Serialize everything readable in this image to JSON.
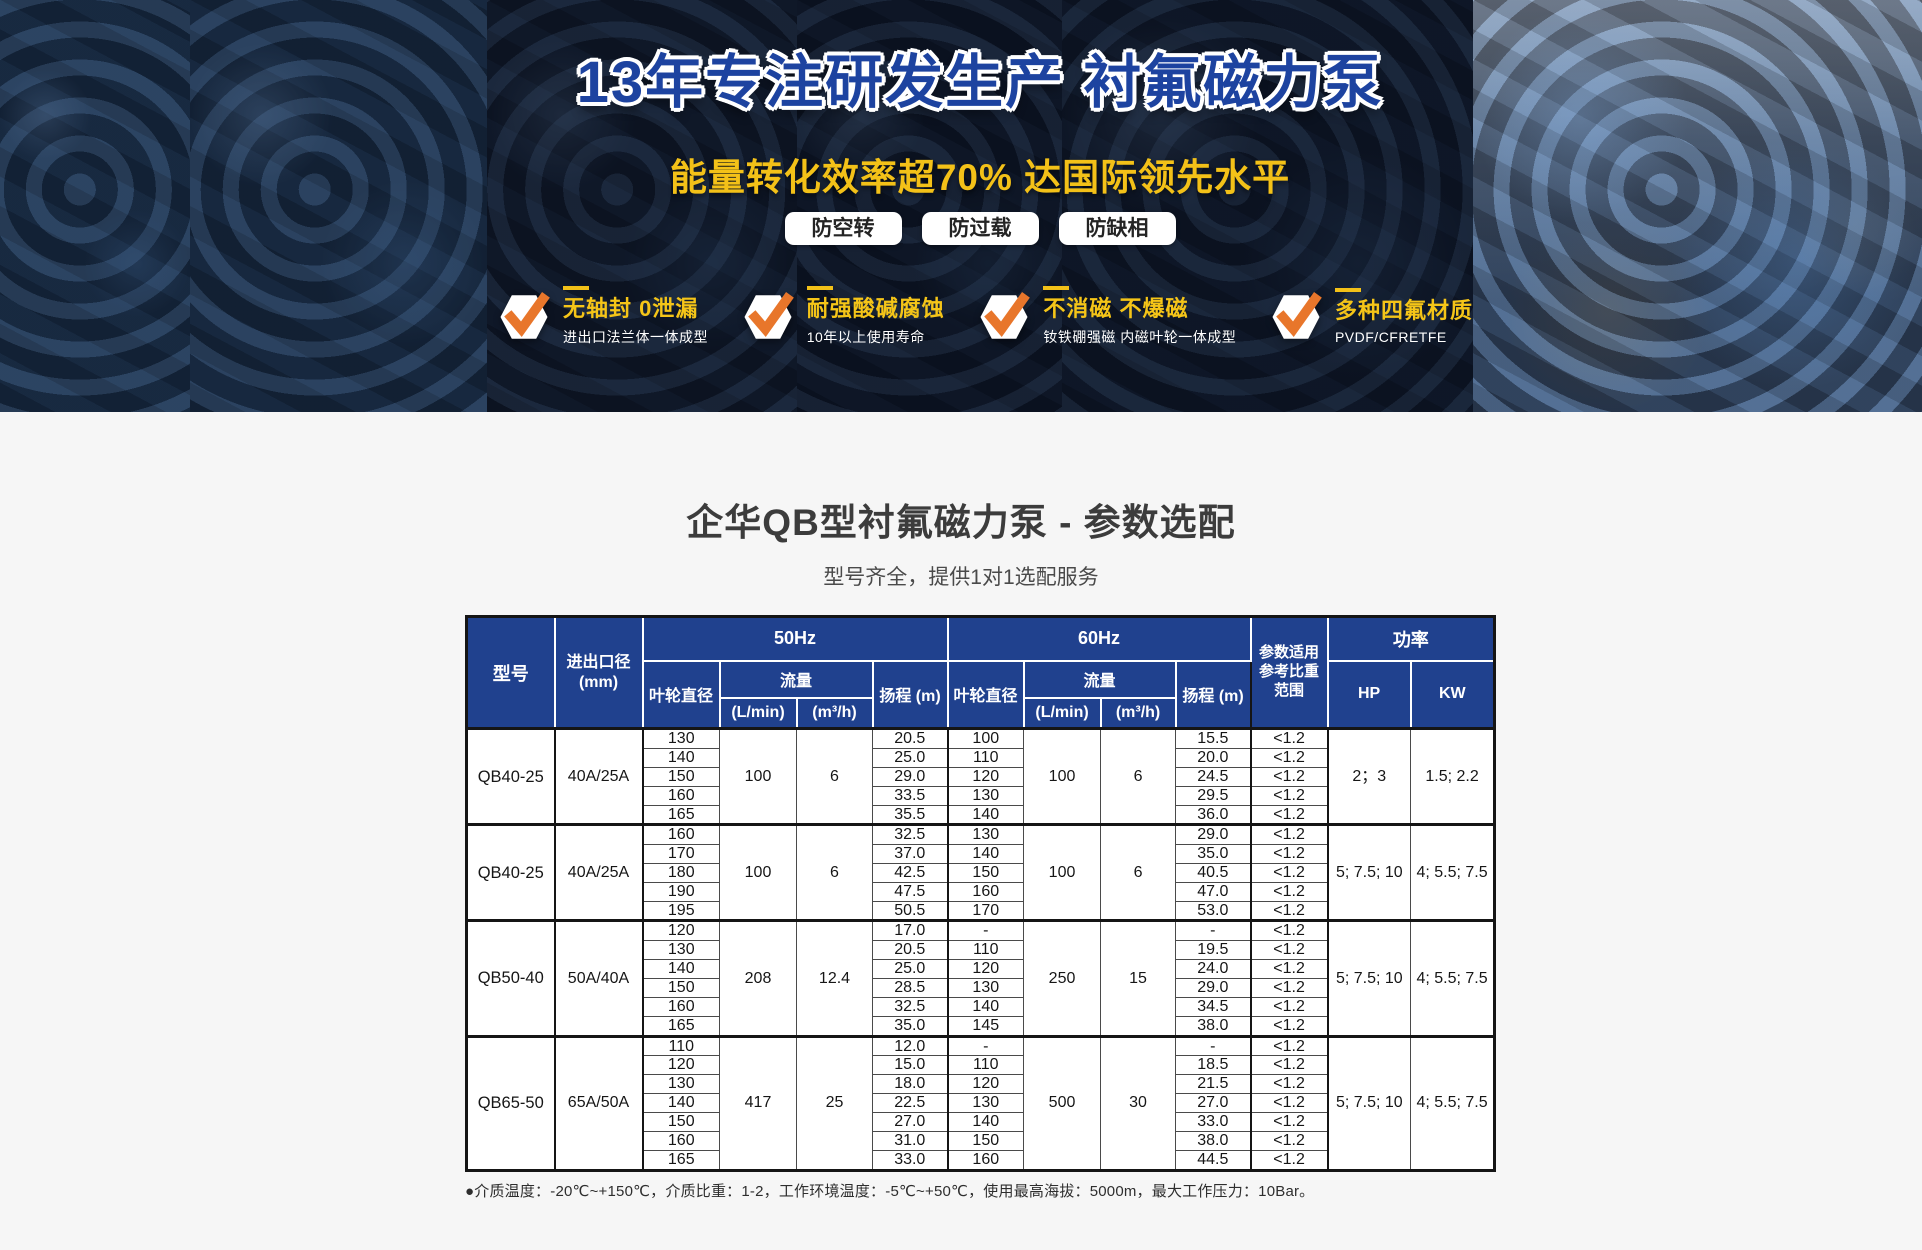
{
  "banner": {
    "title": "13年专注研发生产 衬氟磁力泵",
    "subtitle": "能量转化效率超70% 达国际领先水平",
    "pills": [
      "防空转",
      "防过载",
      "防缺相"
    ],
    "features": [
      {
        "icon": "check-cube-icon",
        "title": "无轴封 0泄漏",
        "desc": "进出口法兰体一体成型"
      },
      {
        "icon": "check-cube-icon",
        "title": "耐强酸碱腐蚀",
        "desc": "10年以上使用寿命"
      },
      {
        "icon": "check-cube-icon",
        "title": "不消磁 不爆磁",
        "desc": "钕铁硼强磁 内磁叶轮一体成型"
      },
      {
        "icon": "check-cube-icon",
        "title": "多种四氟材质",
        "desc": "PVDF/CFRETFE"
      }
    ]
  },
  "section": {
    "title": "企华QB型衬氟磁力泵 - 参数选配",
    "subtitle": "型号齐全，提供1对1选配服务",
    "footnote": "●介质温度：-20℃~+150℃，介质比重：1-2，工作环境温度：-5℃~+50℃，使用最高海拔：5000m，最大工作压力：10Bar。"
  },
  "table": {
    "header": {
      "model": "型号",
      "port": "进出口径\n(mm)",
      "hz50": "50Hz",
      "hz60": "60Hz",
      "impeller": "叶轮直径",
      "flow": "流量",
      "lmin": "(L/min)",
      "m3h": "(m³/h)",
      "head": "扬程 (m)",
      "ratio": "参数适用\n参考比重\n范围",
      "power": "功率",
      "hp": "HP",
      "kw": "KW"
    },
    "groups": [
      {
        "model": "QB40-25",
        "port": "40A/25A",
        "flow50": [
          "100",
          "6"
        ],
        "flow60": [
          "100",
          "6"
        ],
        "hp": "2；3",
        "kw": "1.5; 2.2",
        "rows": [
          [
            "130",
            "20.5",
            "100",
            "15.5",
            "<1.2"
          ],
          [
            "140",
            "25.0",
            "110",
            "20.0",
            "<1.2"
          ],
          [
            "150",
            "29.0",
            "120",
            "24.5",
            "<1.2"
          ],
          [
            "160",
            "33.5",
            "130",
            "29.5",
            "<1.2"
          ],
          [
            "165",
            "35.5",
            "140",
            "36.0",
            "<1.2"
          ]
        ]
      },
      {
        "model": "QB40-25",
        "port": "40A/25A",
        "flow50": [
          "100",
          "6"
        ],
        "flow60": [
          "100",
          "6"
        ],
        "hp": "5; 7.5; 10",
        "kw": "4; 5.5; 7.5",
        "rows": [
          [
            "160",
            "32.5",
            "130",
            "29.0",
            "<1.2"
          ],
          [
            "170",
            "37.0",
            "140",
            "35.0",
            "<1.2"
          ],
          [
            "180",
            "42.5",
            "150",
            "40.5",
            "<1.2"
          ],
          [
            "190",
            "47.5",
            "160",
            "47.0",
            "<1.2"
          ],
          [
            "195",
            "50.5",
            "170",
            "53.0",
            "<1.2"
          ]
        ]
      },
      {
        "model": "QB50-40",
        "port": "50A/40A",
        "flow50": [
          "208",
          "12.4"
        ],
        "flow60": [
          "250",
          "15"
        ],
        "hp": "5; 7.5; 10",
        "kw": "4; 5.5; 7.5",
        "rows": [
          [
            "120",
            "17.0",
            "-",
            "-",
            "<1.2"
          ],
          [
            "130",
            "20.5",
            "110",
            "19.5",
            "<1.2"
          ],
          [
            "140",
            "25.0",
            "120",
            "24.0",
            "<1.2"
          ],
          [
            "150",
            "28.5",
            "130",
            "29.0",
            "<1.2"
          ],
          [
            "160",
            "32.5",
            "140",
            "34.5",
            "<1.2"
          ],
          [
            "165",
            "35.0",
            "145",
            "38.0",
            "<1.2"
          ]
        ]
      },
      {
        "model": "QB65-50",
        "port": "65A/50A",
        "flow50": [
          "417",
          "25"
        ],
        "flow60": [
          "500",
          "30"
        ],
        "hp": "5; 7.5; 10",
        "kw": "4; 5.5; 7.5",
        "rows": [
          [
            "110",
            "12.0",
            "-",
            "-",
            "<1.2"
          ],
          [
            "120",
            "15.0",
            "110",
            "18.5",
            "<1.2"
          ],
          [
            "130",
            "18.0",
            "120",
            "21.5",
            "<1.2"
          ],
          [
            "140",
            "22.5",
            "130",
            "27.0",
            "<1.2"
          ],
          [
            "150",
            "27.0",
            "140",
            "33.0",
            "<1.2"
          ],
          [
            "160",
            "31.0",
            "150",
            "38.0",
            "<1.2"
          ],
          [
            "165",
            "33.0",
            "160",
            "44.5",
            "<1.2"
          ]
        ]
      }
    ]
  },
  "colors": {
    "header_blue": "#20418e",
    "title_blue": "#1d43a0",
    "accent_yellow": "#f3c118",
    "check_orange": "#e8762b"
  }
}
